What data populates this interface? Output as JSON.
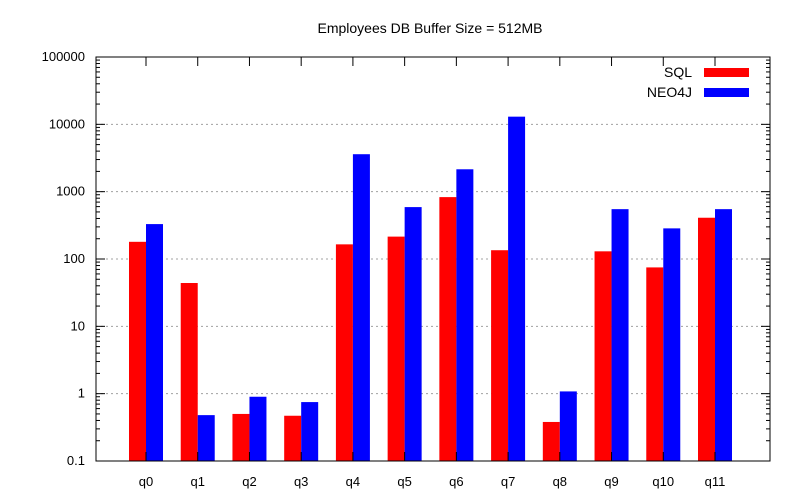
{
  "chart_data": {
    "type": "bar",
    "title": "Employees DB Buffer Size = 512MB",
    "xlabel": "",
    "ylabel": "",
    "yscale": "log",
    "ylim": [
      0.1,
      100000
    ],
    "y_ticks": [
      "0.1",
      "1",
      "10",
      "100",
      "1000",
      "10000",
      "100000"
    ],
    "grid": true,
    "legend_position": "top-right",
    "categories": [
      "q0",
      "q1",
      "q2",
      "q3",
      "q4",
      "q5",
      "q6",
      "q7",
      "q8",
      "q9",
      "q10",
      "q11"
    ],
    "series": [
      {
        "name": "SQL",
        "color": "#ff0000",
        "values": [
          180,
          44,
          0.5,
          0.47,
          165,
          215,
          830,
          135,
          0.38,
          130,
          75,
          410
        ]
      },
      {
        "name": "NEO4J",
        "color": "#0000ff",
        "values": [
          330,
          0.48,
          0.9,
          0.75,
          3600,
          590,
          2150,
          13000,
          1.08,
          550,
          285,
          550
        ]
      }
    ]
  }
}
